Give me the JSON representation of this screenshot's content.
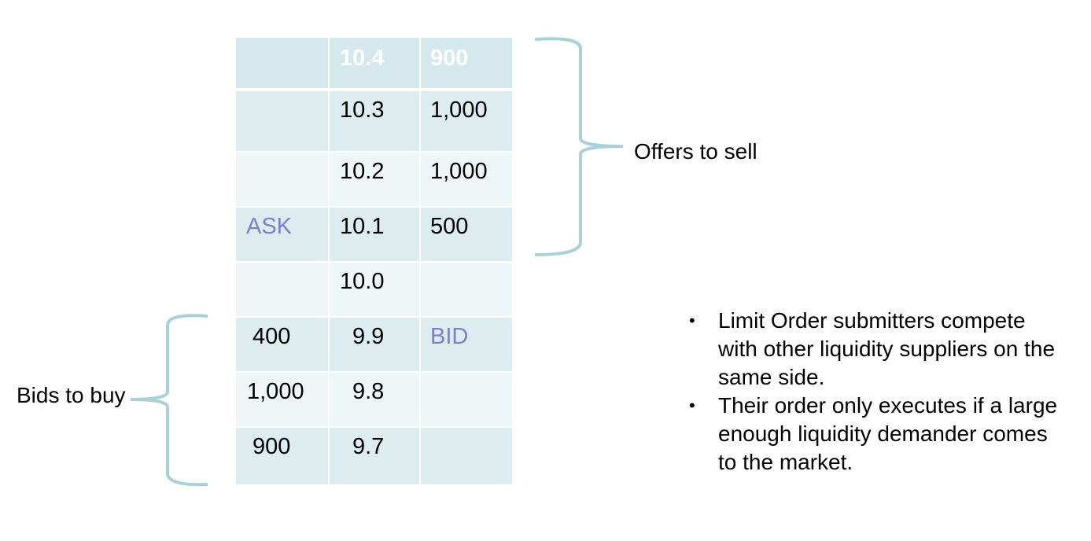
{
  "order_book": {
    "rows": [
      {
        "side": "",
        "price": "10.4",
        "size": "900"
      },
      {
        "side": "",
        "price": "10.3",
        "size": "1,000"
      },
      {
        "side": "",
        "price": "10.2",
        "size": "1,000"
      },
      {
        "side": "ASK",
        "price": "10.1",
        "size": "500"
      },
      {
        "side": "",
        "price": "10.0",
        "size": ""
      },
      {
        "side": "400",
        "price": "9.9",
        "size": "BID"
      },
      {
        "side": "1,000",
        "price": "9.8",
        "size": ""
      },
      {
        "side": "900",
        "price": "9.7",
        "size": ""
      }
    ]
  },
  "labels": {
    "offers": "Offers to sell",
    "bids": "Bids to buy"
  },
  "bullets": [
    "Limit Order submitters compete with other liquidity suppliers on the same side.",
    "Their order only executes if a large enough liquidity demander comes to the market."
  ],
  "colors": {
    "brace": "#a9d2d8",
    "accent_text": "#7d7fce",
    "cell_dark": "#dcecef",
    "cell_light": "#eff6f8",
    "header_fill": "#d5e8ec"
  }
}
